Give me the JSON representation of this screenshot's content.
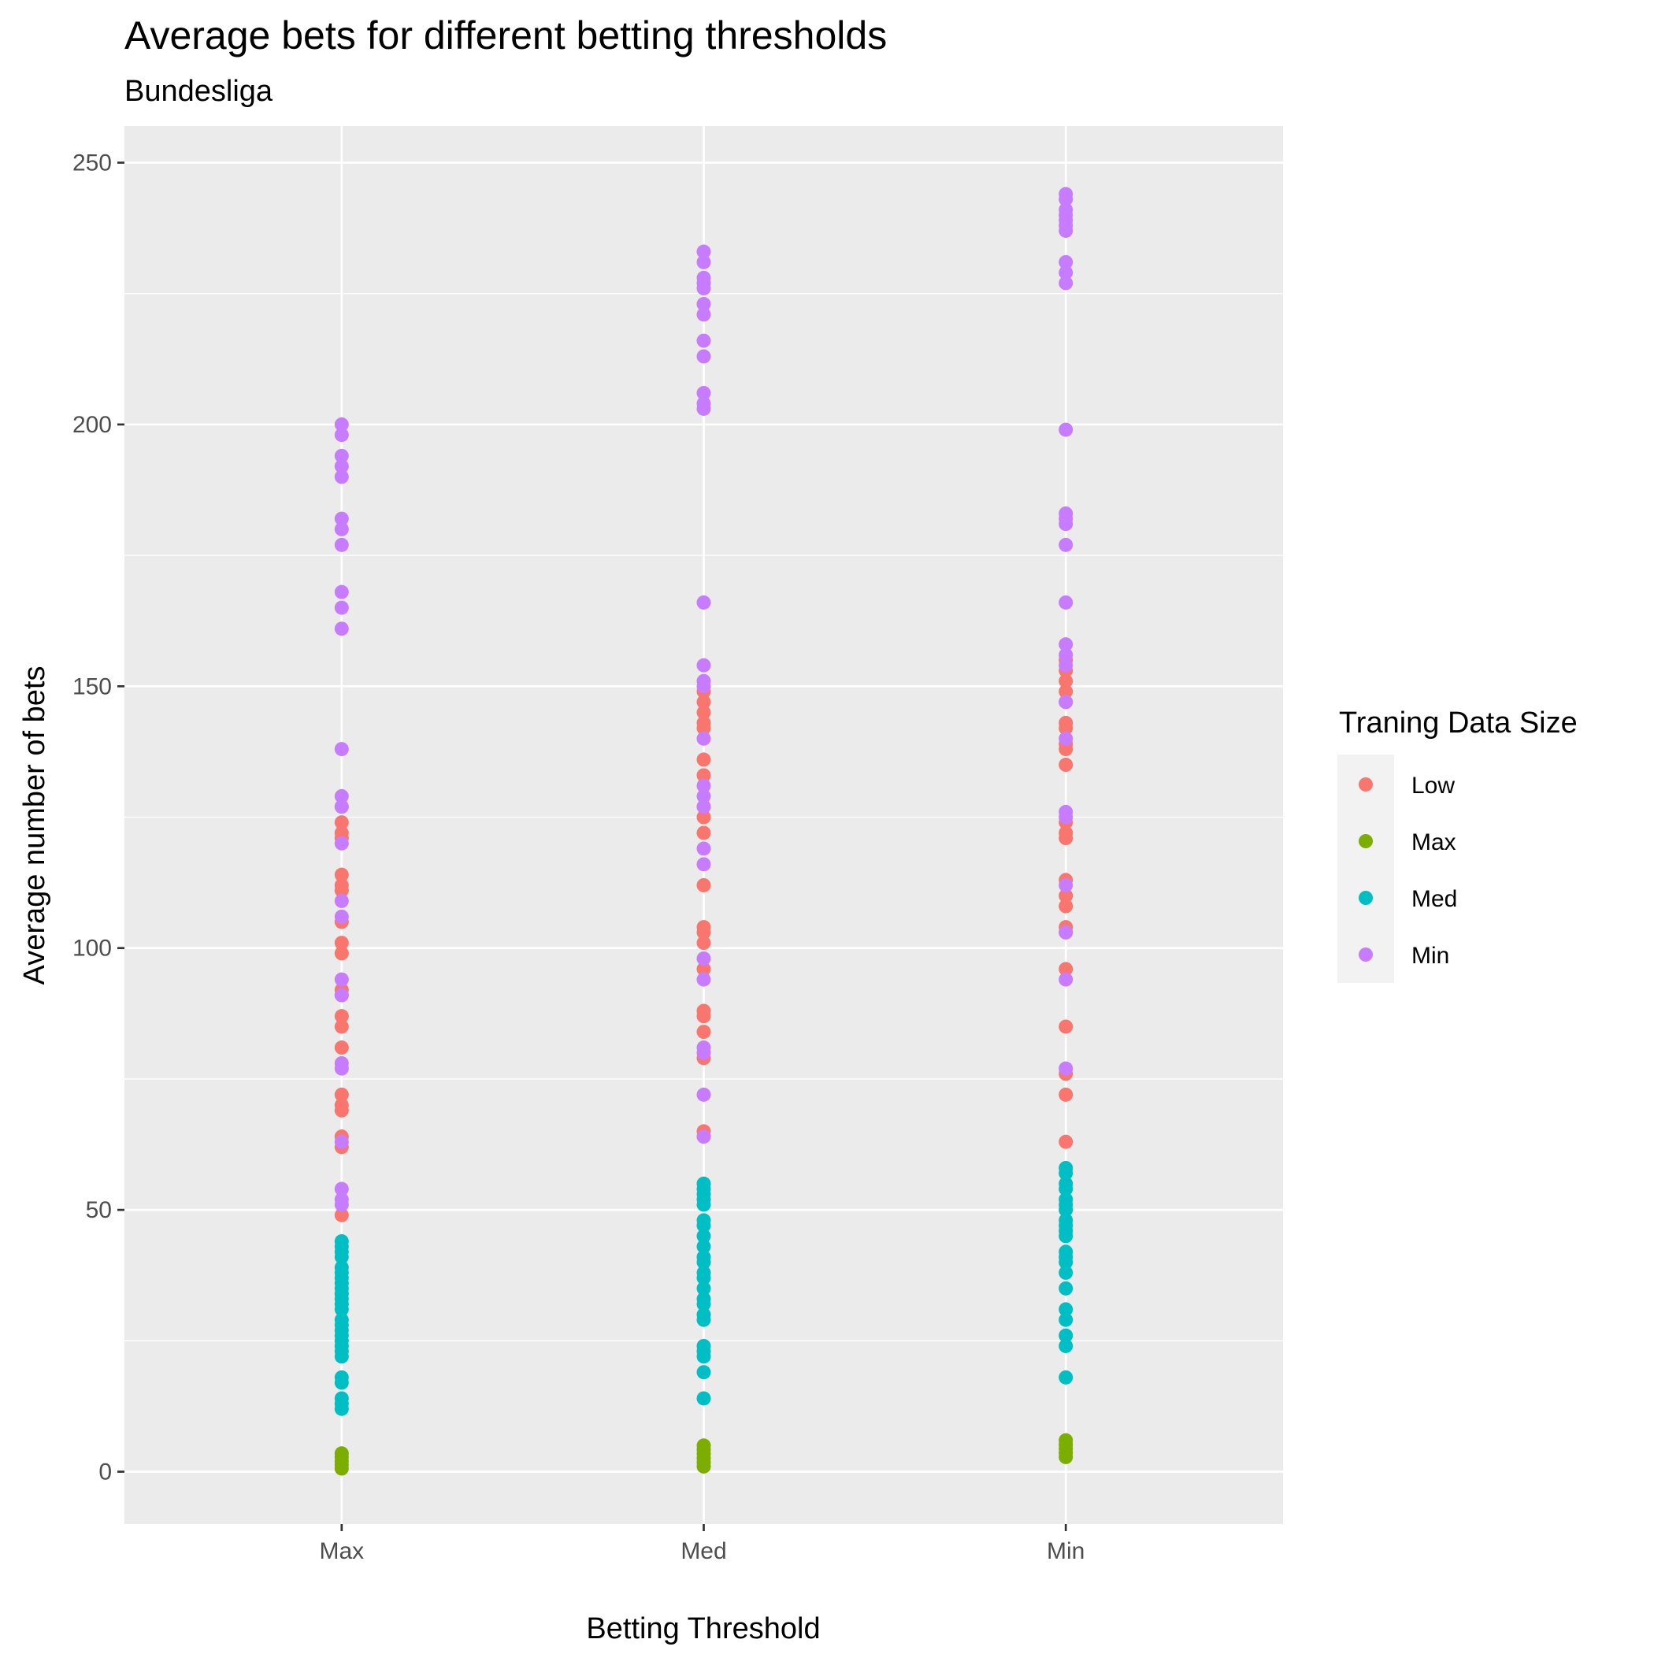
{
  "chart_data": {
    "type": "scatter",
    "title": "Average bets for different betting thresholds",
    "subtitle": "Bundesliga",
    "xlabel": "Betting Threshold",
    "ylabel": "Average number of bets",
    "categories": [
      "Max",
      "Med",
      "Min"
    ],
    "ylim": [
      -10,
      257
    ],
    "yticks": [
      0,
      50,
      100,
      150,
      200,
      250
    ],
    "grid": true,
    "legend_position": "right",
    "legend_title": "Traning Data Size",
    "series": [
      {
        "name": "Low",
        "color": "#F8766D",
        "points": [
          [
            "Max",
            127
          ],
          [
            "Max",
            124
          ],
          [
            "Max",
            122
          ],
          [
            "Max",
            121
          ],
          [
            "Max",
            114
          ],
          [
            "Max",
            112
          ],
          [
            "Max",
            111
          ],
          [
            "Max",
            105
          ],
          [
            "Max",
            101
          ],
          [
            "Max",
            99
          ],
          [
            "Max",
            92
          ],
          [
            "Max",
            91
          ],
          [
            "Max",
            87
          ],
          [
            "Max",
            85
          ],
          [
            "Max",
            81
          ],
          [
            "Max",
            72
          ],
          [
            "Max",
            70
          ],
          [
            "Max",
            69
          ],
          [
            "Max",
            64
          ],
          [
            "Max",
            62
          ],
          [
            "Max",
            49
          ],
          [
            "Max",
            34
          ],
          [
            "Med",
            149
          ],
          [
            "Med",
            147
          ],
          [
            "Med",
            145
          ],
          [
            "Med",
            143
          ],
          [
            "Med",
            142
          ],
          [
            "Med",
            136
          ],
          [
            "Med",
            133
          ],
          [
            "Med",
            127
          ],
          [
            "Med",
            125
          ],
          [
            "Med",
            122
          ],
          [
            "Med",
            112
          ],
          [
            "Med",
            104
          ],
          [
            "Med",
            103
          ],
          [
            "Med",
            101
          ],
          [
            "Med",
            96
          ],
          [
            "Med",
            88
          ],
          [
            "Med",
            87
          ],
          [
            "Med",
            84
          ],
          [
            "Med",
            79
          ],
          [
            "Med",
            65
          ],
          [
            "Med",
            64
          ],
          [
            "Med",
            55
          ],
          [
            "Min",
            155
          ],
          [
            "Min",
            153
          ],
          [
            "Min",
            151
          ],
          [
            "Min",
            149
          ],
          [
            "Min",
            147
          ],
          [
            "Min",
            143
          ],
          [
            "Min",
            142
          ],
          [
            "Min",
            139
          ],
          [
            "Min",
            138
          ],
          [
            "Min",
            135
          ],
          [
            "Min",
            124
          ],
          [
            "Min",
            122
          ],
          [
            "Min",
            121
          ],
          [
            "Min",
            113
          ],
          [
            "Min",
            110
          ],
          [
            "Min",
            108
          ],
          [
            "Min",
            104
          ],
          [
            "Min",
            103
          ],
          [
            "Min",
            96
          ],
          [
            "Min",
            85
          ],
          [
            "Min",
            76
          ],
          [
            "Min",
            72
          ],
          [
            "Min",
            63
          ]
        ]
      },
      {
        "name": "Max",
        "color": "#7CAE00",
        "points": [
          [
            "Max",
            3.5
          ],
          [
            "Max",
            2.8
          ],
          [
            "Max",
            2.0
          ],
          [
            "Max",
            1.3
          ],
          [
            "Max",
            0.6
          ],
          [
            "Med",
            5.0
          ],
          [
            "Med",
            4.2
          ],
          [
            "Med",
            3.4
          ],
          [
            "Med",
            2.6
          ],
          [
            "Med",
            1.8
          ],
          [
            "Med",
            1.0
          ],
          [
            "Min",
            6.0
          ],
          [
            "Min",
            5.2
          ],
          [
            "Min",
            4.4
          ],
          [
            "Min",
            3.6
          ],
          [
            "Min",
            2.8
          ]
        ]
      },
      {
        "name": "Med",
        "color": "#00BFC4",
        "points": [
          [
            "Max",
            44
          ],
          [
            "Max",
            43
          ],
          [
            "Max",
            42
          ],
          [
            "Max",
            41
          ],
          [
            "Max",
            39
          ],
          [
            "Max",
            38
          ],
          [
            "Max",
            37
          ],
          [
            "Max",
            36
          ],
          [
            "Max",
            35
          ],
          [
            "Max",
            34
          ],
          [
            "Max",
            33
          ],
          [
            "Max",
            32
          ],
          [
            "Max",
            31
          ],
          [
            "Max",
            29
          ],
          [
            "Max",
            28
          ],
          [
            "Max",
            27
          ],
          [
            "Max",
            26
          ],
          [
            "Max",
            25
          ],
          [
            "Max",
            24
          ],
          [
            "Max",
            23
          ],
          [
            "Max",
            22
          ],
          [
            "Max",
            18
          ],
          [
            "Max",
            17
          ],
          [
            "Max",
            14
          ],
          [
            "Max",
            13
          ],
          [
            "Max",
            12
          ],
          [
            "Med",
            55
          ],
          [
            "Med",
            54
          ],
          [
            "Med",
            53
          ],
          [
            "Med",
            52
          ],
          [
            "Med",
            51
          ],
          [
            "Med",
            48
          ],
          [
            "Med",
            47
          ],
          [
            "Med",
            45
          ],
          [
            "Med",
            43
          ],
          [
            "Med",
            41
          ],
          [
            "Med",
            40
          ],
          [
            "Med",
            38
          ],
          [
            "Med",
            37
          ],
          [
            "Med",
            35
          ],
          [
            "Med",
            33
          ],
          [
            "Med",
            32
          ],
          [
            "Med",
            30
          ],
          [
            "Med",
            29
          ],
          [
            "Med",
            24
          ],
          [
            "Med",
            23
          ],
          [
            "Med",
            22
          ],
          [
            "Med",
            19
          ],
          [
            "Med",
            14
          ],
          [
            "Min",
            58
          ],
          [
            "Min",
            57
          ],
          [
            "Min",
            55
          ],
          [
            "Min",
            54
          ],
          [
            "Min",
            52
          ],
          [
            "Min",
            51
          ],
          [
            "Min",
            50
          ],
          [
            "Min",
            48
          ],
          [
            "Min",
            47
          ],
          [
            "Min",
            46
          ],
          [
            "Min",
            45
          ],
          [
            "Min",
            42
          ],
          [
            "Min",
            41
          ],
          [
            "Min",
            40
          ],
          [
            "Min",
            38
          ],
          [
            "Min",
            35
          ],
          [
            "Min",
            31
          ],
          [
            "Min",
            29
          ],
          [
            "Min",
            26
          ],
          [
            "Min",
            24
          ],
          [
            "Min",
            18
          ]
        ]
      },
      {
        "name": "Min",
        "color": "#C77CFF",
        "points": [
          [
            "Max",
            200
          ],
          [
            "Max",
            198
          ],
          [
            "Max",
            194
          ],
          [
            "Max",
            192
          ],
          [
            "Max",
            190
          ],
          [
            "Max",
            182
          ],
          [
            "Max",
            180
          ],
          [
            "Max",
            177
          ],
          [
            "Max",
            168
          ],
          [
            "Max",
            165
          ],
          [
            "Max",
            161
          ],
          [
            "Max",
            138
          ],
          [
            "Max",
            129
          ],
          [
            "Max",
            127
          ],
          [
            "Max",
            120
          ],
          [
            "Max",
            109
          ],
          [
            "Max",
            106
          ],
          [
            "Max",
            94
          ],
          [
            "Max",
            91
          ],
          [
            "Max",
            78
          ],
          [
            "Max",
            77
          ],
          [
            "Max",
            63
          ],
          [
            "Max",
            54
          ],
          [
            "Max",
            52
          ],
          [
            "Max",
            51
          ],
          [
            "Med",
            233
          ],
          [
            "Med",
            231
          ],
          [
            "Med",
            228
          ],
          [
            "Med",
            227
          ],
          [
            "Med",
            226
          ],
          [
            "Med",
            223
          ],
          [
            "Med",
            221
          ],
          [
            "Med",
            216
          ],
          [
            "Med",
            213
          ],
          [
            "Med",
            206
          ],
          [
            "Med",
            204
          ],
          [
            "Med",
            203
          ],
          [
            "Med",
            166
          ],
          [
            "Med",
            154
          ],
          [
            "Med",
            151
          ],
          [
            "Med",
            150
          ],
          [
            "Med",
            140
          ],
          [
            "Med",
            131
          ],
          [
            "Med",
            129
          ],
          [
            "Med",
            127
          ],
          [
            "Med",
            119
          ],
          [
            "Med",
            116
          ],
          [
            "Med",
            98
          ],
          [
            "Med",
            94
          ],
          [
            "Med",
            81
          ],
          [
            "Med",
            80
          ],
          [
            "Med",
            72
          ],
          [
            "Med",
            64
          ],
          [
            "Min",
            244
          ],
          [
            "Min",
            243
          ],
          [
            "Min",
            241
          ],
          [
            "Min",
            240
          ],
          [
            "Min",
            239
          ],
          [
            "Min",
            238
          ],
          [
            "Min",
            237
          ],
          [
            "Min",
            231
          ],
          [
            "Min",
            229
          ],
          [
            "Min",
            227
          ],
          [
            "Min",
            199
          ],
          [
            "Min",
            183
          ],
          [
            "Min",
            182
          ],
          [
            "Min",
            181
          ],
          [
            "Min",
            177
          ],
          [
            "Min",
            166
          ],
          [
            "Min",
            158
          ],
          [
            "Min",
            156
          ],
          [
            "Min",
            154
          ],
          [
            "Min",
            147
          ],
          [
            "Min",
            140
          ],
          [
            "Min",
            126
          ],
          [
            "Min",
            125
          ],
          [
            "Min",
            112
          ],
          [
            "Min",
            103
          ],
          [
            "Min",
            94
          ],
          [
            "Min",
            77
          ]
        ]
      }
    ]
  }
}
